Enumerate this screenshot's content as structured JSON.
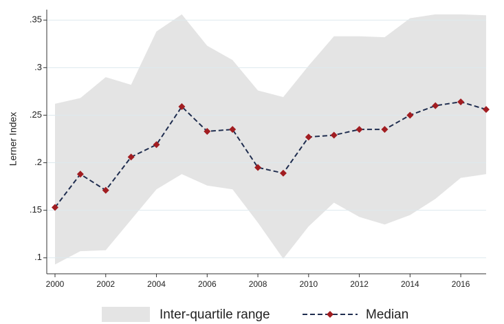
{
  "chart_data": {
    "type": "line",
    "y_label": "Lerner Index",
    "x": [
      2000,
      2001,
      2002,
      2003,
      2004,
      2005,
      2006,
      2007,
      2008,
      2009,
      2010,
      2011,
      2012,
      2013,
      2014,
      2015,
      2016,
      2017
    ],
    "series": [
      {
        "name": "Inter-quartile range",
        "color": "#e4e4e4",
        "lower": [
          0.093,
          0.107,
          0.108,
          0.14,
          0.172,
          0.188,
          0.176,
          0.172,
          0.137,
          0.099,
          0.133,
          0.158,
          0.143,
          0.135,
          0.145,
          0.162,
          0.184,
          0.188
        ],
        "upper": [
          0.262,
          0.268,
          0.29,
          0.282,
          0.338,
          0.356,
          0.323,
          0.308,
          0.276,
          0.269,
          0.302,
          0.333,
          0.333,
          0.332,
          0.352,
          0.356,
          0.356,
          0.355
        ]
      },
      {
        "name": "Median",
        "color": "#1f2d4f",
        "marker_color": "#a11d21",
        "values": [
          0.153,
          0.188,
          0.171,
          0.206,
          0.219,
          0.259,
          0.233,
          0.235,
          0.195,
          0.189,
          0.227,
          0.229,
          0.235,
          0.235,
          0.25,
          0.26,
          0.264,
          0.256
        ]
      }
    ],
    "xlim": [
      2000,
      2017
    ],
    "xticks": [
      2000,
      2002,
      2004,
      2006,
      2008,
      2010,
      2012,
      2014,
      2016
    ],
    "ylim": [
      0.089,
      0.361
    ],
    "yticks": [
      {
        "value": 0.1,
        "label": ".1"
      },
      {
        "value": 0.15,
        "label": ".15"
      },
      {
        "value": 0.2,
        "label": ".2"
      },
      {
        "value": 0.25,
        "label": ".25"
      },
      {
        "value": 0.3,
        "label": ".3"
      },
      {
        "value": 0.35,
        "label": ".35"
      }
    ],
    "grid": true,
    "legend": "bottom"
  }
}
